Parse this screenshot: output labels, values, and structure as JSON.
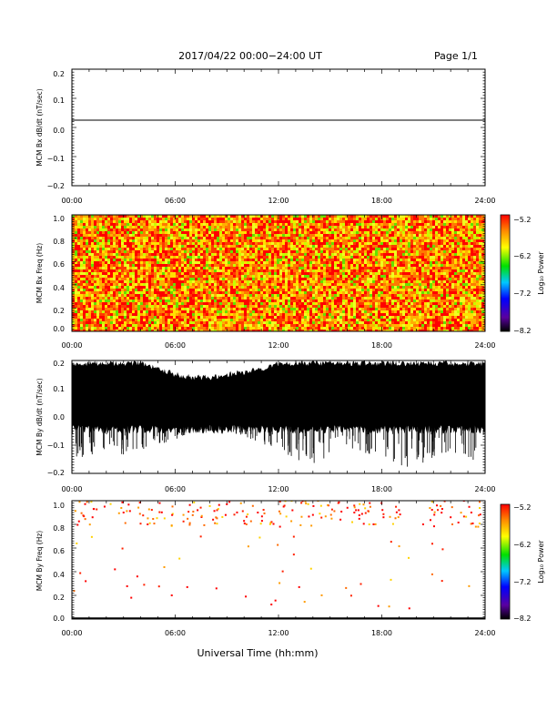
{
  "header": {
    "title": "2017/04/22  00:00−24:00 UT",
    "page": "Page 1/1"
  },
  "xaxis_label": "Universal Time (hh:mm)",
  "x_ticks": [
    "00:00",
    "06:00",
    "12:00",
    "18:00",
    "24:00"
  ],
  "colorbar": {
    "label": "Log₁₀ Power",
    "ticks": [
      "−5.2",
      "−6.2",
      "−7.2",
      "−8.2"
    ],
    "range": [
      -8.2,
      -5.2
    ],
    "colors": [
      "#000000",
      "#5a00a0",
      "#0000ff",
      "#00c8ff",
      "#00e000",
      "#ffff00",
      "#ff8c00",
      "#ff0000"
    ]
  },
  "chart_data": [
    {
      "type": "line",
      "ylabel": "MCM Bx dB/dt (nT/sec)",
      "x_ticks": [
        "00:00",
        "06:00",
        "12:00",
        "18:00",
        "24:00"
      ],
      "y_ticks": [
        "0.2",
        "0.1",
        "0.0",
        "−0.1",
        "−0.2"
      ],
      "xlim": [
        0,
        24
      ],
      "ylim": [
        -0.2,
        0.2
      ],
      "x_units": "hours UT",
      "series": [
        {
          "x": [
            0,
            24
          ],
          "y": [
            0.025,
            0.025
          ]
        }
      ]
    },
    {
      "type": "heatmap",
      "ylabel": "MCM Bx Freq (Hz)",
      "x_ticks": [
        "00:00",
        "06:00",
        "12:00",
        "18:00",
        "24:00"
      ],
      "y_ticks": [
        "1.0",
        "0.8",
        "0.6",
        "0.4",
        "0.2",
        "0.0"
      ],
      "xlim": [
        0,
        24
      ],
      "ylim": [
        0,
        1.0
      ],
      "color_scale": "Log10 Power, −8.2 to −5.2",
      "appearance": "dense noisy field dominated by yellow, orange and red with scattered green"
    },
    {
      "type": "line",
      "ylabel": "MCM By dB/dt (nT/sec)",
      "x_ticks": [
        "00:00",
        "06:00",
        "12:00",
        "18:00",
        "24:00"
      ],
      "y_ticks": [
        "0.2",
        "0.1",
        "0.0",
        "−0.1",
        "−0.2"
      ],
      "xlim": [
        0,
        24
      ],
      "ylim": [
        -0.2,
        0.2
      ],
      "appearance": "dense black noise band filling roughly −0.05 to 0.2, with spikes down to −0.2",
      "series": [
        {
          "x": [
            0,
            1,
            2,
            3,
            4,
            5,
            6,
            7,
            8,
            9,
            10,
            11,
            12,
            13,
            14,
            15,
            16,
            17,
            18,
            19,
            20,
            21,
            22,
            23,
            24
          ],
          "y_min": [
            -0.17,
            -0.15,
            -0.12,
            -0.14,
            -0.12,
            -0.1,
            -0.08,
            -0.06,
            -0.05,
            -0.05,
            -0.07,
            -0.1,
            -0.12,
            -0.15,
            -0.18,
            -0.15,
            -0.12,
            -0.13,
            -0.16,
            -0.2,
            -0.18,
            -0.15,
            -0.12,
            -0.16,
            -0.15
          ],
          "y_max": [
            0.2,
            0.2,
            0.2,
            0.2,
            0.2,
            0.18,
            0.16,
            0.15,
            0.15,
            0.16,
            0.17,
            0.18,
            0.2,
            0.2,
            0.2,
            0.2,
            0.2,
            0.2,
            0.2,
            0.2,
            0.2,
            0.2,
            0.2,
            0.2,
            0.2
          ]
        }
      ]
    },
    {
      "type": "heatmap",
      "ylabel": "MCM By Freq (Hz)",
      "x_ticks": [
        "00:00",
        "06:00",
        "12:00",
        "18:00",
        "24:00"
      ],
      "y_ticks": [
        "1.0",
        "0.8",
        "0.6",
        "0.4",
        "0.2",
        "0.0"
      ],
      "xlim": [
        0,
        24
      ],
      "ylim": [
        0,
        1.0
      ],
      "color_scale": "Log10 Power, −8.2 to −5.2",
      "appearance": "sparse red and orange dots concentrated near 0.8–1.0 Hz, a few lower, mostly white background",
      "points": [
        {
          "x": 0.8,
          "y": 0.32
        },
        {
          "x": 1.2,
          "y": 0.86
        },
        {
          "x": 1.9,
          "y": 0.95
        },
        {
          "x": 2.5,
          "y": 0.42
        },
        {
          "x": 3.0,
          "y": 0.9
        },
        {
          "x": 3.8,
          "y": 0.36
        },
        {
          "x": 4.4,
          "y": 0.8
        },
        {
          "x": 5.1,
          "y": 0.98
        },
        {
          "x": 5.8,
          "y": 0.2
        },
        {
          "x": 6.7,
          "y": 0.27
        },
        {
          "x": 7.3,
          "y": 0.92
        },
        {
          "x": 8.2,
          "y": 0.84
        },
        {
          "x": 9.0,
          "y": 0.97
        },
        {
          "x": 10.1,
          "y": 0.19
        },
        {
          "x": 10.8,
          "y": 0.9
        },
        {
          "x": 11.6,
          "y": 0.82
        },
        {
          "x": 12.3,
          "y": 0.95
        },
        {
          "x": 13.2,
          "y": 0.27
        },
        {
          "x": 14.0,
          "y": 0.88
        },
        {
          "x": 14.9,
          "y": 0.96
        },
        {
          "x": 15.6,
          "y": 0.84
        },
        {
          "x": 16.5,
          "y": 0.92
        },
        {
          "x": 17.3,
          "y": 0.98
        },
        {
          "x": 18.1,
          "y": 0.86
        },
        {
          "x": 19.0,
          "y": 0.92
        },
        {
          "x": 19.6,
          "y": 0.09
        },
        {
          "x": 20.4,
          "y": 0.8
        },
        {
          "x": 21.2,
          "y": 0.96
        },
        {
          "x": 22.0,
          "y": 0.86
        },
        {
          "x": 23.2,
          "y": 0.9
        }
      ]
    }
  ]
}
